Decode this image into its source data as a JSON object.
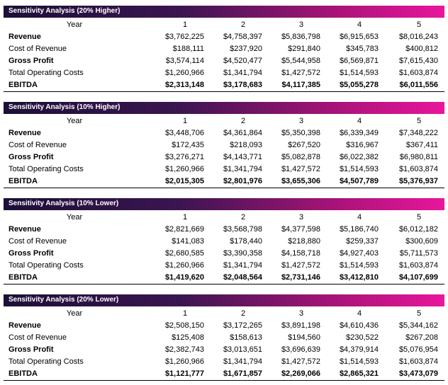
{
  "sections": [
    {
      "title": "Sensitivity Analysis (20% Higher)",
      "year_label": "Year",
      "years": [
        1,
        2,
        3,
        4,
        5
      ],
      "rows": [
        {
          "label": "Revenue",
          "values": [
            "$3,762,225",
            "$4,758,397",
            "$5,836,798",
            "$6,915,653",
            "$8,016,243"
          ]
        },
        {
          "label": "Cost of Revenue",
          "values": [
            "$188,111",
            "$237,920",
            "$291,840",
            "$345,783",
            "$400,812"
          ]
        },
        {
          "label": "Gross Profit",
          "values": [
            "$3,574,114",
            "$4,520,477",
            "$5,544,958",
            "$6,569,871",
            "$7,615,430"
          ]
        },
        {
          "label": "Total Operating Costs",
          "values": [
            "$1,260,966",
            "$1,341,794",
            "$1,427,572",
            "$1,514,593",
            "$1,603,874"
          ]
        },
        {
          "label": "EBITDA",
          "values": [
            "$2,313,148",
            "$3,178,683",
            "$4,117,385",
            "$5,055,278",
            "$6,011,556"
          ]
        }
      ]
    },
    {
      "title": "Sensitivity Analysis (10% Higher)",
      "year_label": "Year",
      "years": [
        1,
        2,
        3,
        4,
        5
      ],
      "rows": [
        {
          "label": "Revenue",
          "values": [
            "$3,448,706",
            "$4,361,864",
            "$5,350,398",
            "$6,339,349",
            "$7,348,222"
          ]
        },
        {
          "label": "Cost of Revenue",
          "values": [
            "$172,435",
            "$218,093",
            "$267,520",
            "$316,967",
            "$367,411"
          ]
        },
        {
          "label": "Gross Profit",
          "values": [
            "$3,276,271",
            "$4,143,771",
            "$5,082,878",
            "$6,022,382",
            "$6,980,811"
          ]
        },
        {
          "label": "Total Operating Costs",
          "values": [
            "$1,260,966",
            "$1,341,794",
            "$1,427,572",
            "$1,514,593",
            "$1,603,874"
          ]
        },
        {
          "label": "EBITDA",
          "values": [
            "$2,015,305",
            "$2,801,976",
            "$3,655,306",
            "$4,507,789",
            "$5,376,937"
          ]
        }
      ]
    },
    {
      "title": "Sensitivity Analysis (10% Lower)",
      "year_label": "Year",
      "years": [
        1,
        2,
        3,
        4,
        5
      ],
      "rows": [
        {
          "label": "Revenue",
          "values": [
            "$2,821,669",
            "$3,568,798",
            "$4,377,598",
            "$5,186,740",
            "$6,012,182"
          ]
        },
        {
          "label": "Cost of Revenue",
          "values": [
            "$141,083",
            "$178,440",
            "$218,880",
            "$259,337",
            "$300,609"
          ]
        },
        {
          "label": "Gross Profit",
          "values": [
            "$2,680,585",
            "$3,390,358",
            "$4,158,718",
            "$4,927,403",
            "$5,711,573"
          ]
        },
        {
          "label": "Total Operating Costs",
          "values": [
            "$1,260,966",
            "$1,341,794",
            "$1,427,572",
            "$1,514,593",
            "$1,603,874"
          ]
        },
        {
          "label": "EBITDA",
          "values": [
            "$1,419,620",
            "$2,048,564",
            "$2,731,146",
            "$3,412,810",
            "$4,107,699"
          ]
        }
      ]
    },
    {
      "title": "Sensitivity Analysis (20% Lower)",
      "year_label": "Year",
      "years": [
        1,
        2,
        3,
        4,
        5
      ],
      "rows": [
        {
          "label": "Revenue",
          "values": [
            "$2,508,150",
            "$3,172,265",
            "$3,891,198",
            "$4,610,436",
            "$5,344,162"
          ]
        },
        {
          "label": "Cost of Revenue",
          "values": [
            "$125,408",
            "$158,613",
            "$194,560",
            "$230,522",
            "$267,208"
          ]
        },
        {
          "label": "Gross Profit",
          "values": [
            "$2,382,743",
            "$3,013,651",
            "$3,696,639",
            "$4,379,914",
            "$5,076,954"
          ]
        },
        {
          "label": "Total Operating Costs",
          "values": [
            "$1,260,966",
            "$1,341,794",
            "$1,427,572",
            "$1,514,593",
            "$1,603,874"
          ]
        },
        {
          "label": "EBITDA",
          "values": [
            "$1,121,777",
            "$1,671,857",
            "$2,269,066",
            "$2,865,321",
            "$3,473,079"
          ]
        }
      ]
    }
  ]
}
